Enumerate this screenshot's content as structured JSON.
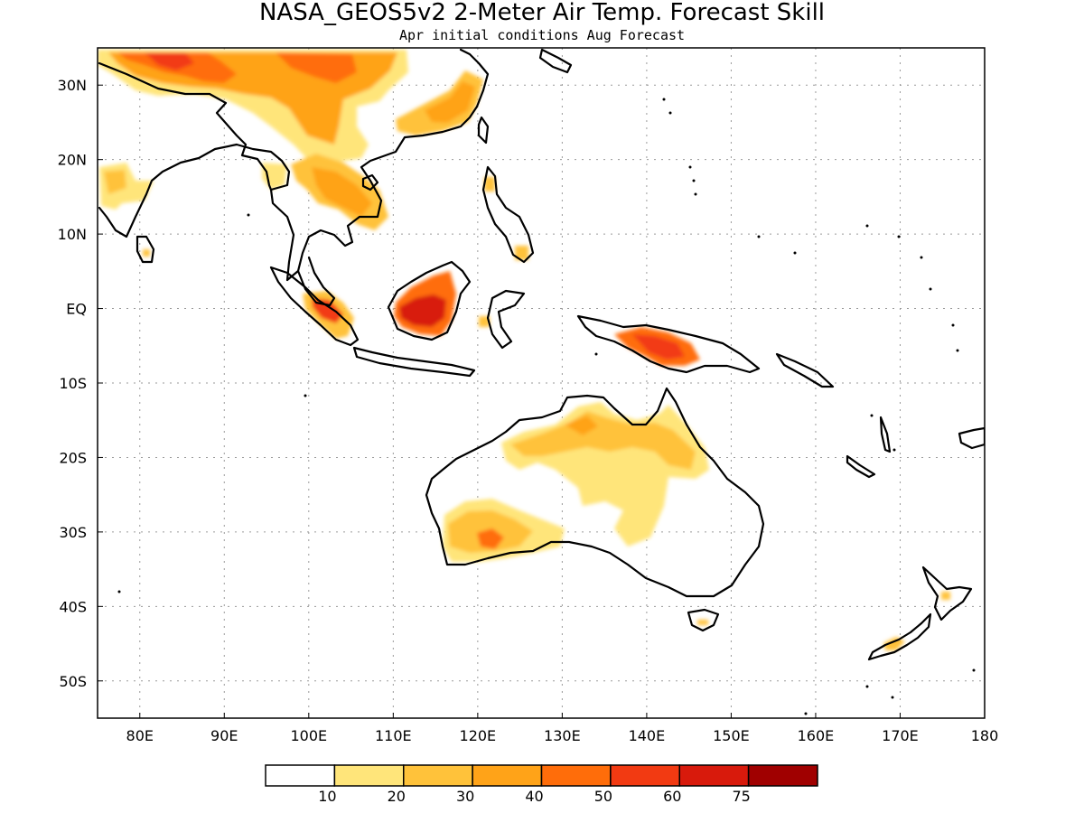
{
  "header": {
    "title": "NASA_GEOS5v2 2-Meter Air Temp. Forecast Skill",
    "subtitle": "Apr initial conditions  Aug Forecast"
  },
  "map": {
    "projection": "equirectangular",
    "lon_range": [
      75,
      180
    ],
    "lat_range": [
      -55,
      35
    ],
    "lon_ticks": [
      {
        "value": 80,
        "label": "80E"
      },
      {
        "value": 90,
        "label": "90E"
      },
      {
        "value": 100,
        "label": "100E"
      },
      {
        "value": 110,
        "label": "110E"
      },
      {
        "value": 120,
        "label": "120E"
      },
      {
        "value": 130,
        "label": "130E"
      },
      {
        "value": 140,
        "label": "140E"
      },
      {
        "value": 150,
        "label": "150E"
      },
      {
        "value": 160,
        "label": "160E"
      },
      {
        "value": 170,
        "label": "170E"
      },
      {
        "value": 180,
        "label": "180"
      }
    ],
    "lat_ticks": [
      {
        "value": 30,
        "label": "30N"
      },
      {
        "value": 20,
        "label": "20N"
      },
      {
        "value": 10,
        "label": "10N"
      },
      {
        "value": 0,
        "label": "EQ"
      },
      {
        "value": -10,
        "label": "10S"
      },
      {
        "value": -20,
        "label": "20S"
      },
      {
        "value": -30,
        "label": "30S"
      },
      {
        "value": -40,
        "label": "40S"
      },
      {
        "value": -50,
        "label": "50S"
      }
    ],
    "grid": "dotted",
    "coastline_color": "#000000"
  },
  "colorbar": {
    "orientation": "horizontal",
    "placement": "bottom",
    "boundaries": [
      "10",
      "20",
      "30",
      "40",
      "50",
      "60",
      "75"
    ],
    "colors": [
      "#ffffff",
      "#ffe57a",
      "#ffc23a",
      "#ffa318",
      "#ff6d0a",
      "#f23a12",
      "#d81a0c",
      "#a00000"
    ]
  },
  "chart_data": {
    "type": "heatmap",
    "title": "NASA_GEOS5v2 2-Meter Air Temp. Forecast Skill",
    "subtitle": "Apr initial conditions  Aug Forecast",
    "xlabel": "",
    "ylabel": "",
    "xlim": [
      75,
      180
    ],
    "ylim": [
      -55,
      35
    ],
    "levels": [
      10,
      20,
      30,
      40,
      50,
      60,
      75
    ],
    "regions": [
      {
        "area": "Tibet / western China",
        "lon": [
          76,
          102
        ],
        "lat": [
          22,
          35
        ],
        "value_range": [
          20,
          60
        ]
      },
      {
        "area": "Southern China",
        "lon": [
          110,
          121
        ],
        "lat": [
          23,
          30
        ],
        "value_range": [
          20,
          40
        ]
      },
      {
        "area": "Indochina",
        "lon": [
          97,
          110
        ],
        "lat": [
          8,
          22
        ],
        "value_range": [
          10,
          40
        ]
      },
      {
        "area": "Western India",
        "lon": [
          75,
          82
        ],
        "lat": [
          14,
          20
        ],
        "value_range": [
          10,
          30
        ]
      },
      {
        "area": "Sumatra",
        "lon": [
          98,
          105
        ],
        "lat": [
          -4,
          2
        ],
        "value_range": [
          30,
          60
        ]
      },
      {
        "area": "Borneo",
        "lon": [
          109,
          117
        ],
        "lat": [
          -3,
          5
        ],
        "value_range": [
          50,
          75
        ]
      },
      {
        "area": "New Guinea",
        "lon": [
          138,
          147
        ],
        "lat": [
          -7,
          -3
        ],
        "value_range": [
          40,
          60
        ]
      },
      {
        "area": "Northern Australia",
        "lon": [
          124,
          146
        ],
        "lat": [
          -24,
          -12
        ],
        "value_range": [
          10,
          40
        ]
      },
      {
        "area": "Southwest Australia",
        "lon": [
          116,
          127
        ],
        "lat": [
          -34,
          -26
        ],
        "value_range": [
          20,
          50
        ]
      },
      {
        "area": "Tasmania",
        "lon": [
          146,
          148
        ],
        "lat": [
          -42,
          -41
        ],
        "value_range": [
          10,
          20
        ]
      },
      {
        "area": "New Zealand",
        "lon": [
          168,
          176
        ],
        "lat": [
          -46,
          -38
        ],
        "value_range": [
          10,
          40
        ]
      }
    ]
  }
}
